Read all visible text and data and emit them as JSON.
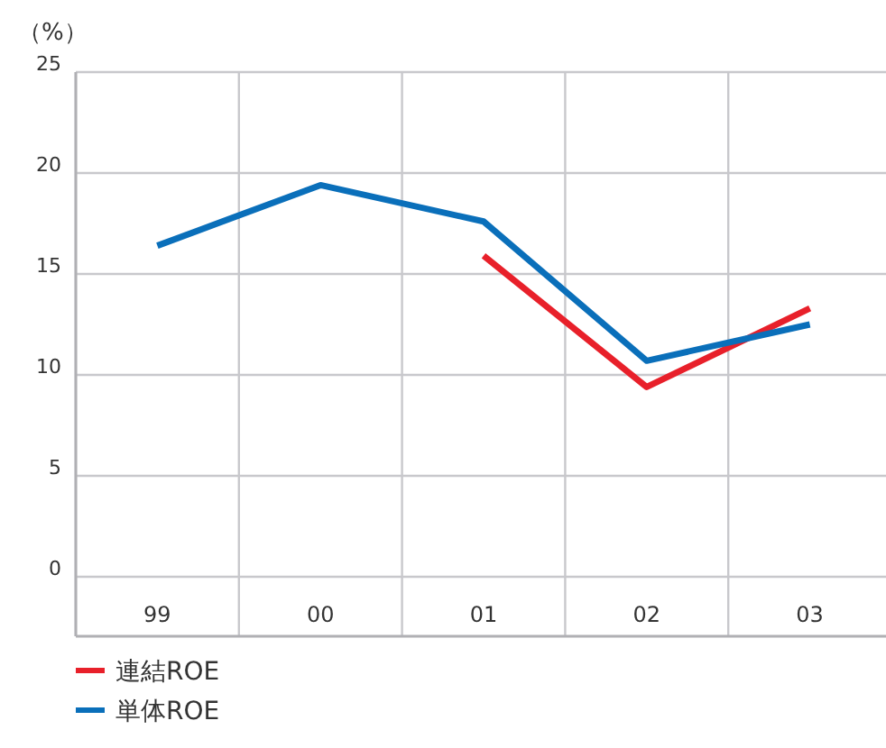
{
  "chart_data": {
    "type": "line",
    "ylabel": "（%）",
    "categories": [
      "99",
      "00",
      "01",
      "02",
      "03"
    ],
    "series": [
      {
        "name": "連結ROE",
        "color": "#e8202a",
        "values": [
          null,
          null,
          15.9,
          9.4,
          13.3
        ]
      },
      {
        "name": "単体ROE",
        "color": "#0a6fba",
        "values": [
          16.4,
          19.4,
          17.6,
          10.7,
          12.5
        ]
      }
    ],
    "ylim": [
      0,
      25
    ],
    "yticks": [
      0,
      5,
      10,
      15,
      20,
      25
    ],
    "grid": true,
    "legend": "bottom left",
    "marker": "none",
    "line_style": "solid"
  }
}
